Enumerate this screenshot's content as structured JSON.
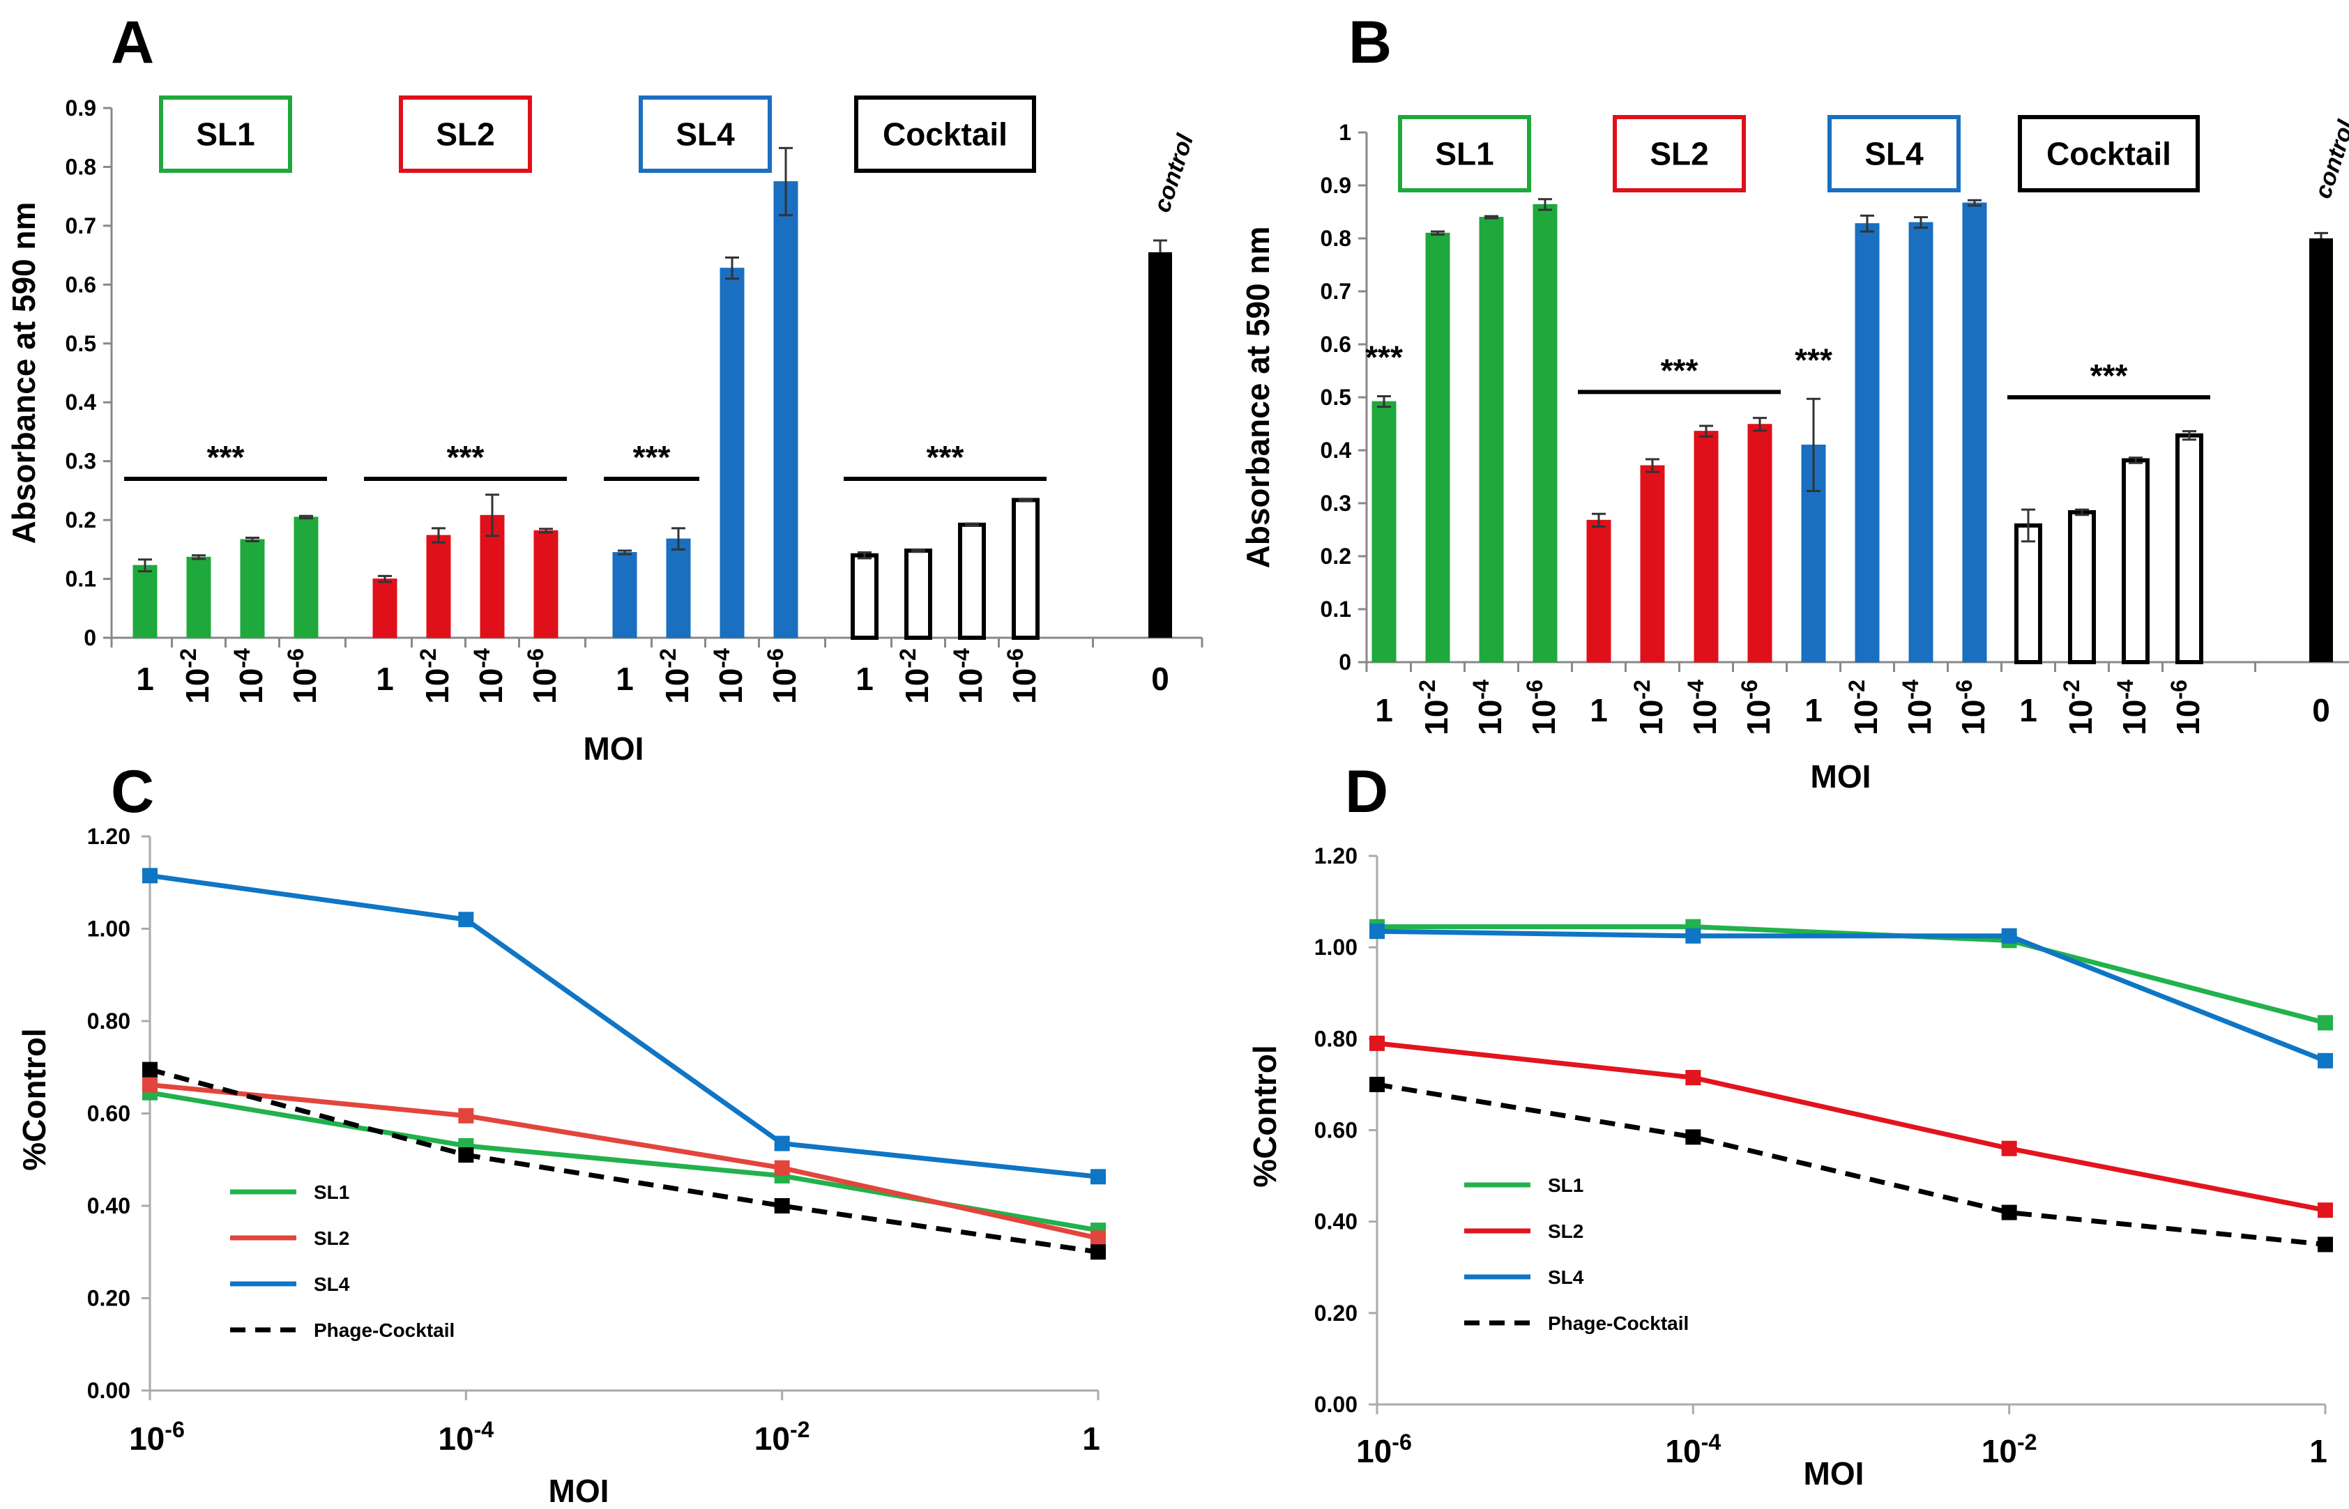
{
  "figure": {
    "panels": [
      {
        "letter": "A",
        "chart_data": {
          "type": "bar",
          "ylabel": "Absorbance at 590 nm",
          "xlabel": "MOI",
          "ylim": [
            0,
            0.9
          ],
          "yticks": [
            0,
            0.1,
            0.2,
            0.3,
            0.4,
            0.5,
            0.6,
            0.7,
            0.8,
            0.9
          ],
          "ytick_labels": [
            "0",
            "0.1",
            "0.2",
            "0.3",
            "0.4",
            "0.5",
            "0.6",
            "0.7",
            "0.8",
            "0.9"
          ],
          "groups": [
            {
              "name": "SL1",
              "color": "#1fa83c",
              "style": "filled",
              "categories": [
                "1",
                "10^-2",
                "10^-4",
                "10^-6"
              ],
              "values": [
                0.123,
                0.137,
                0.167,
                0.205
              ],
              "errors": [
                0.01,
                0.003,
                0.003,
                0.002
              ],
              "stars": {
                "label": "***",
                "start": 0,
                "end": 3
              }
            },
            {
              "name": "SL2",
              "color": "#e0101a",
              "style": "filled",
              "categories": [
                "1",
                "10^-2",
                "10^-4",
                "10^-6"
              ],
              "values": [
                0.1,
                0.174,
                0.208,
                0.182
              ],
              "errors": [
                0.005,
                0.012,
                0.035,
                0.003
              ],
              "stars": {
                "label": "***",
                "start": 0,
                "end": 3
              }
            },
            {
              "name": "SL4",
              "color": "#1a6fc0",
              "style": "filled",
              "categories": [
                "1",
                "10^-2",
                "10^-4",
                "10^-6"
              ],
              "values": [
                0.145,
                0.168,
                0.628,
                0.775
              ],
              "errors": [
                0.003,
                0.018,
                0.018,
                0.057
              ],
              "stars": {
                "label": "***",
                "start": 0,
                "end": 1
              }
            },
            {
              "name": "Cocktail",
              "color": "#000000",
              "style": "hollow",
              "categories": [
                "1",
                "10^-2",
                "10^-4",
                "10^-6"
              ],
              "values": [
                0.14,
                0.148,
                0.192,
                0.234
              ],
              "errors": [
                0.005,
                0.002,
                0.002,
                0.002
              ],
              "stars": {
                "label": "***",
                "start": 0,
                "end": 3
              }
            }
          ],
          "control": {
            "name": "control",
            "category": "0",
            "value": 0.655,
            "error": 0.02,
            "color": "#000000"
          }
        }
      },
      {
        "letter": "B",
        "chart_data": {
          "type": "bar",
          "ylabel": "Absorbance at 590 nm",
          "xlabel": "MOI",
          "ylim": [
            0,
            1
          ],
          "yticks": [
            0,
            0.1,
            0.2,
            0.3,
            0.4,
            0.5,
            0.6,
            0.7,
            0.8,
            0.9,
            1
          ],
          "ytick_labels": [
            "0",
            "0.1",
            "0.2",
            "0.3",
            "0.4",
            "0.5",
            "0.6",
            "0.7",
            "0.8",
            "0.9",
            "1"
          ],
          "groups": [
            {
              "name": "SL1",
              "color": "#1fa83c",
              "style": "filled",
              "categories": [
                "1",
                "10^-2",
                "10^-4",
                "10^-6"
              ],
              "values": [
                0.492,
                0.81,
                0.84,
                0.864
              ],
              "errors": [
                0.01,
                0.003,
                0.002,
                0.01
              ],
              "stars": {
                "label": "***",
                "start": 0,
                "end": 0
              }
            },
            {
              "name": "SL2",
              "color": "#e0101a",
              "style": "filled",
              "categories": [
                "1",
                "10^-2",
                "10^-4",
                "10^-6"
              ],
              "values": [
                0.268,
                0.371,
                0.436,
                0.449
              ],
              "errors": [
                0.012,
                0.012,
                0.01,
                0.012
              ],
              "stars": {
                "label": "***",
                "start": 0,
                "end": 3
              }
            },
            {
              "name": "SL4",
              "color": "#1a6fc0",
              "style": "filled",
              "categories": [
                "1",
                "10^-2",
                "10^-4",
                "10^-6"
              ],
              "values": [
                0.41,
                0.828,
                0.83,
                0.867
              ],
              "errors": [
                0.087,
                0.015,
                0.01,
                0.005
              ],
              "stars": {
                "label": "***",
                "start": 0,
                "end": 0
              }
            },
            {
              "name": "Cocktail",
              "color": "#000000",
              "style": "hollow",
              "categories": [
                "1",
                "10^-2",
                "10^-4",
                "10^-6"
              ],
              "values": [
                0.258,
                0.283,
                0.381,
                0.428
              ],
              "errors": [
                0.03,
                0.005,
                0.005,
                0.008
              ],
              "stars": {
                "label": "***",
                "start": 0,
                "end": 3
              }
            }
          ],
          "control": {
            "name": "control",
            "category": "0",
            "value": 0.8,
            "error": 0.01,
            "color": "#000000"
          }
        }
      },
      {
        "letter": "C",
        "chart_data": {
          "type": "line",
          "ylabel": "%Control",
          "xlabel": "MOI",
          "ylim": [
            0,
            1.2
          ],
          "yticks": [
            0,
            0.2,
            0.4,
            0.6,
            0.8,
            1.0,
            1.2
          ],
          "ytick_labels": [
            "0.00",
            "0.20",
            "0.40",
            "0.60",
            "0.80",
            "1.00",
            "1.20"
          ],
          "x": [
            "10^-6",
            "10^-4",
            "10^-2",
            "1"
          ],
          "series": [
            {
              "name": "SL1",
              "color": "#22b14c",
              "dash": false,
              "values": [
                0.645,
                0.53,
                0.465,
                0.347
              ]
            },
            {
              "name": "SL2",
              "color": "#e2453c",
              "dash": false,
              "values": [
                0.662,
                0.595,
                0.482,
                0.33
              ]
            },
            {
              "name": "SL4",
              "color": "#0f75c5",
              "dash": false,
              "values": [
                1.115,
                1.02,
                0.535,
                0.463
              ]
            },
            {
              "name": "Phage-Cocktail",
              "color": "#000000",
              "dash": true,
              "values": [
                0.695,
                0.51,
                0.4,
                0.3
              ]
            }
          ]
        }
      },
      {
        "letter": "D",
        "chart_data": {
          "type": "line",
          "ylabel": "%Control",
          "xlabel": "MOI",
          "ylim": [
            0,
            1.2
          ],
          "yticks": [
            0,
            0.2,
            0.4,
            0.6,
            0.8,
            1.0,
            1.2
          ],
          "ytick_labels": [
            "0.00",
            "0.20",
            "0.40",
            "0.60",
            "0.80",
            "1.00",
            "1.20"
          ],
          "x": [
            "10^-6",
            "10^-4",
            "10^-2",
            "1"
          ],
          "series": [
            {
              "name": "SL1",
              "color": "#22b14c",
              "dash": false,
              "values": [
                1.045,
                1.045,
                1.015,
                0.835
              ]
            },
            {
              "name": "SL2",
              "color": "#e2141e",
              "dash": false,
              "values": [
                0.79,
                0.715,
                0.56,
                0.425
              ]
            },
            {
              "name": "SL4",
              "color": "#0f75c5",
              "dash": false,
              "values": [
                1.035,
                1.025,
                1.025,
                0.752
              ]
            },
            {
              "name": "Phage-Cocktail",
              "color": "#000000",
              "dash": true,
              "values": [
                0.7,
                0.585,
                0.42,
                0.35
              ]
            }
          ]
        }
      }
    ]
  }
}
